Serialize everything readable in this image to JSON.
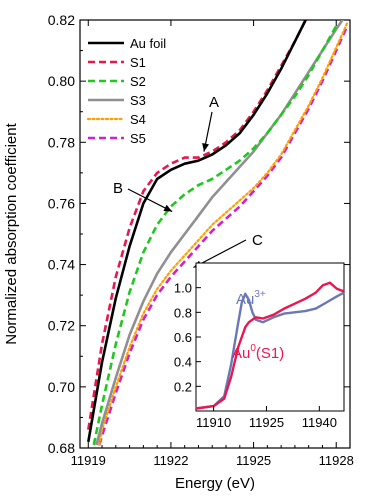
{
  "chart_data": [
    {
      "type": "line",
      "xlabel": "Energy (eV)",
      "ylabel": "Normalized absorption coefficient",
      "xlim": [
        11918.7,
        11928.5
      ],
      "ylim": [
        0.68,
        0.82
      ],
      "xticks": [
        11919,
        11922,
        11925,
        11928
      ],
      "yticks": [
        0.68,
        0.7,
        0.72,
        0.74,
        0.76,
        0.78,
        0.8,
        0.82
      ],
      "xtick_labels": [
        "11919",
        "11922",
        "11925",
        "11928"
      ],
      "ytick_labels": [
        "0.68",
        "0.70",
        "0.72",
        "0.74",
        "0.76",
        "0.78",
        "0.80",
        "0.82"
      ],
      "legend_position": "top-left",
      "series": [
        {
          "name": "Au foil",
          "color": "#000000",
          "style": "solid",
          "x": [
            11919.0,
            11919.5,
            11920.0,
            11920.5,
            11921.0,
            11921.5,
            11922.0,
            11922.5,
            11923.0,
            11923.5,
            11924.0,
            11924.5,
            11925.0,
            11925.5,
            11926.0,
            11926.5,
            11927.0
          ],
          "y": [
            0.682,
            0.708,
            0.729,
            0.746,
            0.76,
            0.768,
            0.771,
            0.773,
            0.774,
            0.776,
            0.779,
            0.783,
            0.789,
            0.796,
            0.804,
            0.813,
            0.822
          ]
        },
        {
          "name": "S1",
          "color": "#e8174f",
          "style": "dashed",
          "x": [
            11919.0,
            11919.5,
            11920.0,
            11920.5,
            11921.0,
            11921.5,
            11922.0,
            11922.5,
            11923.0,
            11923.5,
            11924.0,
            11924.5,
            11925.0,
            11925.5,
            11926.0,
            11926.5,
            11927.0
          ],
          "y": [
            0.686,
            0.714,
            0.736,
            0.752,
            0.764,
            0.77,
            0.773,
            0.775,
            0.775,
            0.777,
            0.78,
            0.784,
            0.79,
            0.797,
            0.805,
            0.813,
            0.822
          ]
        },
        {
          "name": "S2",
          "color": "#1ec81e",
          "style": "dashed",
          "x": [
            11919.2,
            11919.5,
            11920.0,
            11920.5,
            11921.0,
            11921.5,
            11922.0,
            11922.5,
            11923.0,
            11923.5,
            11924.0,
            11924.5,
            11925.0,
            11925.5,
            11926.0,
            11926.5,
            11927.0,
            11927.5,
            11928.0
          ],
          "y": [
            0.681,
            0.694,
            0.714,
            0.731,
            0.744,
            0.753,
            0.759,
            0.763,
            0.766,
            0.768,
            0.771,
            0.774,
            0.778,
            0.783,
            0.789,
            0.795,
            0.802,
            0.81,
            0.818
          ]
        },
        {
          "name": "S3",
          "color": "#909090",
          "style": "solid",
          "x": [
            11919.3,
            11919.5,
            11920.0,
            11920.5,
            11921.0,
            11921.5,
            11922.0,
            11922.5,
            11923.0,
            11923.5,
            11924.0,
            11924.5,
            11925.0,
            11925.5,
            11926.0,
            11926.5,
            11927.0,
            11927.5,
            11928.0,
            11928.3
          ],
          "y": [
            0.681,
            0.688,
            0.703,
            0.717,
            0.728,
            0.737,
            0.744,
            0.75,
            0.756,
            0.762,
            0.767,
            0.772,
            0.777,
            0.783,
            0.789,
            0.796,
            0.803,
            0.81,
            0.817,
            0.821
          ]
        },
        {
          "name": "S4",
          "color": "#ffa000",
          "style": "dotted",
          "x": [
            11919.4,
            11919.5,
            11920.0,
            11920.5,
            11921.0,
            11921.5,
            11922.0,
            11922.5,
            11923.0,
            11923.5,
            11924.0,
            11924.5,
            11925.0,
            11925.5,
            11926.0,
            11926.5,
            11927.0,
            11927.5,
            11928.0,
            11928.4
          ],
          "y": [
            0.681,
            0.686,
            0.7,
            0.713,
            0.724,
            0.732,
            0.738,
            0.743,
            0.748,
            0.753,
            0.757,
            0.761,
            0.765,
            0.77,
            0.776,
            0.784,
            0.792,
            0.801,
            0.811,
            0.819
          ]
        },
        {
          "name": "S5",
          "color": "#d020d0",
          "style": "dashed",
          "x": [
            11919.4,
            11919.5,
            11920.0,
            11920.5,
            11921.0,
            11921.5,
            11922.0,
            11922.5,
            11923.0,
            11923.5,
            11924.0,
            11924.5,
            11925.0,
            11925.5,
            11926.0,
            11926.5,
            11927.0,
            11927.5,
            11928.0,
            11928.4
          ],
          "y": [
            0.681,
            0.684,
            0.698,
            0.711,
            0.722,
            0.73,
            0.736,
            0.741,
            0.746,
            0.751,
            0.755,
            0.759,
            0.764,
            0.769,
            0.775,
            0.783,
            0.791,
            0.8,
            0.81,
            0.818
          ]
        }
      ],
      "annotations": [
        {
          "text": "A",
          "points_to": {
            "x": 11923.2,
            "y": 0.775
          }
        },
        {
          "text": "B",
          "points_to": {
            "x": 11921.9,
            "y": 0.758
          }
        },
        {
          "text": "C",
          "points_to": {
            "x": 11922.6,
            "y": 0.741
          }
        }
      ]
    },
    {
      "type": "line",
      "inset": true,
      "xlim": [
        11905,
        11947
      ],
      "ylim": [
        0.0,
        1.2
      ],
      "xticks": [
        11910,
        11925,
        11940
      ],
      "yticks": [
        0.2,
        0.4,
        0.6,
        0.8,
        1.0
      ],
      "xtick_labels": [
        "11910",
        "11925",
        "11940"
      ],
      "ytick_labels": [
        "0.2",
        "0.4",
        "0.6",
        "0.8",
        "1.0"
      ],
      "series": [
        {
          "name": "Au",
          "sup": "3+",
          "color": "#6a78b8",
          "x": [
            11905,
            11910,
            11913,
            11915,
            11917,
            11918,
            11919,
            11920,
            11921,
            11922,
            11924,
            11927,
            11930,
            11933,
            11936,
            11939,
            11942,
            11945,
            11947
          ],
          "y": [
            0.02,
            0.04,
            0.12,
            0.38,
            0.72,
            0.88,
            0.95,
            0.9,
            0.8,
            0.74,
            0.72,
            0.76,
            0.79,
            0.8,
            0.81,
            0.83,
            0.88,
            0.93,
            0.96
          ]
        },
        {
          "name": "Au",
          "sup": "0",
          "suffix": "(S1)",
          "color": "#e8174f",
          "x": [
            11905,
            11910,
            11913,
            11915,
            11917,
            11918,
            11919,
            11920,
            11921,
            11922,
            11924,
            11927,
            11930,
            11933,
            11936,
            11939,
            11941,
            11943,
            11945,
            11947
          ],
          "y": [
            0.02,
            0.04,
            0.1,
            0.28,
            0.52,
            0.6,
            0.68,
            0.72,
            0.74,
            0.76,
            0.75,
            0.78,
            0.83,
            0.87,
            0.91,
            0.96,
            1.02,
            1.04,
            0.99,
            0.97
          ]
        }
      ]
    }
  ]
}
